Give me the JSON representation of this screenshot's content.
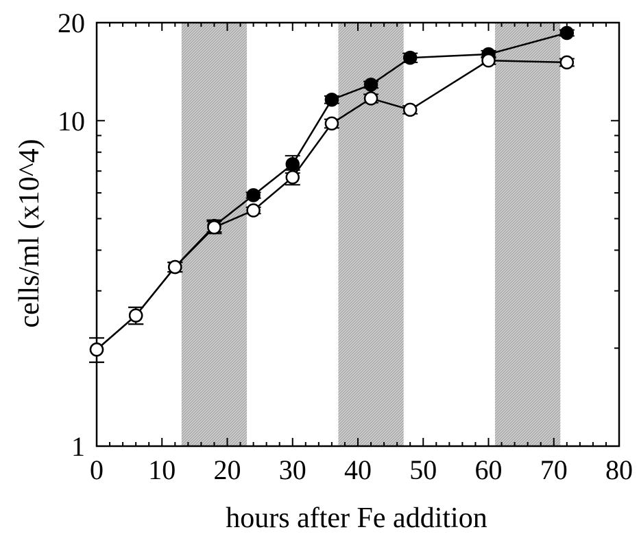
{
  "chart_data": {
    "type": "line",
    "xlabel": "hours after Fe addition",
    "ylabel": "cells/ml (x10^4)",
    "xlim": [
      0,
      80
    ],
    "ylim": [
      1,
      20
    ],
    "y_scale": "log",
    "x_ticks": [
      "0",
      "10",
      "20",
      "30",
      "40",
      "50",
      "60",
      "70",
      "80"
    ],
    "y_ticks": [
      "1",
      "10",
      "20"
    ],
    "shaded_intervals": [
      [
        13,
        23
      ],
      [
        37,
        47
      ],
      [
        61,
        71
      ]
    ],
    "colors": {
      "series": "#000000",
      "shading": "#c8c8c8"
    },
    "series": [
      {
        "marker": "filled-circle",
        "x": [
          0,
          6,
          12,
          18,
          24,
          30,
          36,
          42,
          48,
          60,
          72
        ],
        "y": [
          1.98,
          2.52,
          3.55,
          4.75,
          5.9,
          7.35,
          11.6,
          12.9,
          15.6,
          16.0,
          18.6
        ],
        "err": [
          0.17,
          0.15,
          0.12,
          0.2,
          0.12,
          0.45,
          0.3,
          0.3,
          0.5,
          0.4,
          0.4
        ]
      },
      {
        "marker": "open-circle",
        "x": [
          0,
          6,
          12,
          18,
          24,
          30,
          36,
          42,
          48,
          60,
          72
        ],
        "y": [
          1.98,
          2.52,
          3.55,
          4.7,
          5.3,
          6.7,
          9.8,
          11.7,
          10.8,
          15.3,
          15.1
        ],
        "err": [
          0.17,
          0.15,
          0.12,
          0.2,
          0.12,
          0.35,
          0.3,
          0.35,
          0.3,
          0.4,
          0.4
        ]
      }
    ]
  }
}
